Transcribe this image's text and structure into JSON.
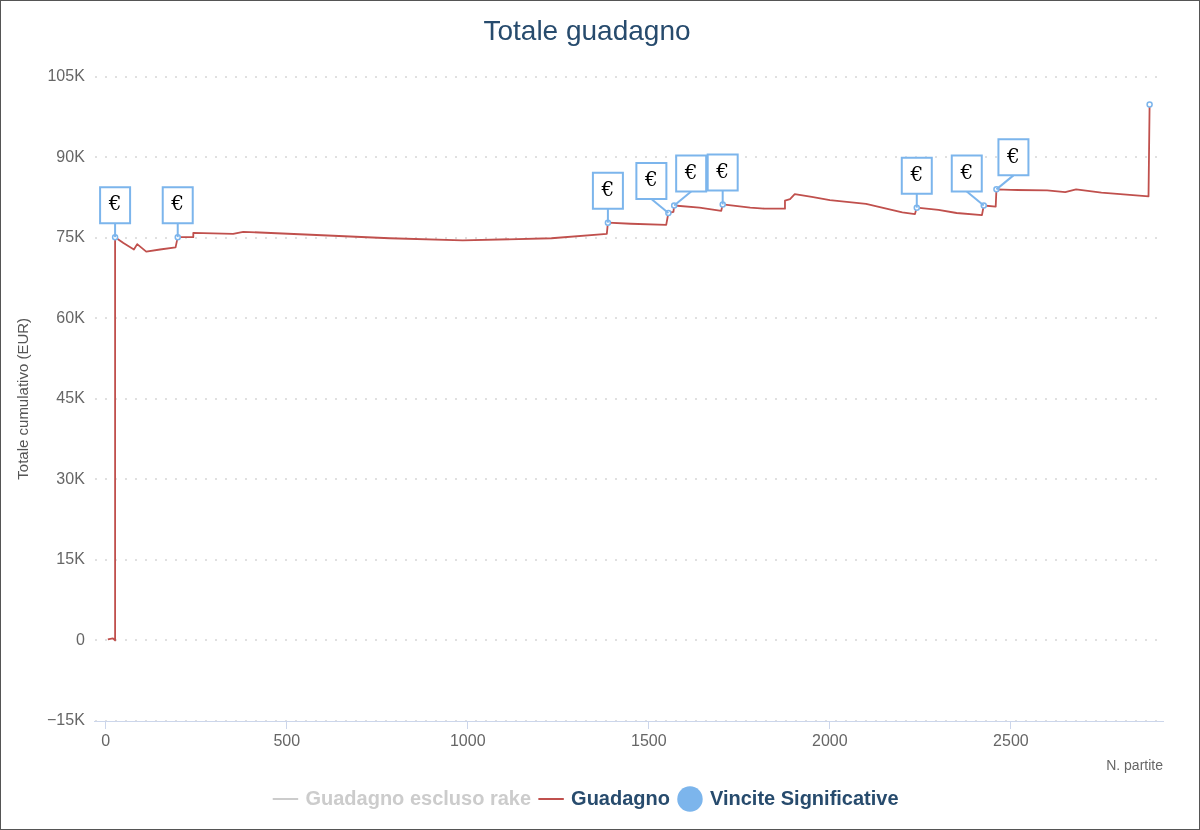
{
  "chart_data": {
    "type": "line",
    "title": "Totale guadagno",
    "xlabel": "N. partite",
    "ylabel": "Totale cumulativo (EUR)",
    "xlim": [
      -30,
      2920
    ],
    "xticks": [
      0,
      500,
      1000,
      1500,
      2000,
      2500
    ],
    "ylim": [
      -15000,
      105000
    ],
    "yticks": [
      {
        "value": -15000,
        "label": "−15K"
      },
      {
        "value": 0,
        "label": "0"
      },
      {
        "value": 15000,
        "label": "15K"
      },
      {
        "value": 30000,
        "label": "30K"
      },
      {
        "value": 45000,
        "label": "45K"
      },
      {
        "value": 60000,
        "label": "60K"
      },
      {
        "value": 75000,
        "label": "75K"
      },
      {
        "value": 90000,
        "label": "90K"
      },
      {
        "value": 105000,
        "label": "105K"
      }
    ],
    "grid": "y",
    "legend": "bottom",
    "line_style": "solid",
    "series": [
      {
        "name": "Guadagno escluso rake",
        "color": "#cccccc"
      },
      {
        "name": "Guadagno",
        "color": "#c0504d",
        "x": [
          6,
          20,
          26,
          26,
          49,
          78,
          87,
          112,
          150,
          193,
          199,
          242,
          242,
          352,
          380,
          582,
          784,
          986,
          1231,
          1384,
          1387,
          1450,
          1548,
          1554,
          1568,
          1570,
          1640,
          1700,
          1704,
          1780,
          1820,
          1874,
          1876,
          1890,
          1903,
          1950,
          2000,
          2100,
          2200,
          2235,
          2240,
          2300,
          2350,
          2420,
          2425,
          2458,
          2460,
          2500,
          2600,
          2650,
          2680,
          2750,
          2880,
          2883
        ],
        "values": [
          200,
          400,
          0,
          75100,
          74000,
          72800,
          73800,
          72400,
          72800,
          73200,
          75100,
          75100,
          75900,
          75700,
          76100,
          75500,
          74900,
          74500,
          74900,
          75700,
          77800,
          77600,
          77400,
          79600,
          79800,
          81000,
          80600,
          80000,
          81200,
          80600,
          80400,
          80400,
          81900,
          82200,
          83100,
          82600,
          82000,
          81300,
          79700,
          79400,
          80600,
          80200,
          79600,
          79200,
          81000,
          80800,
          84000,
          83900,
          83800,
          83500,
          84000,
          83400,
          82700,
          99800
        ]
      },
      {
        "name": "Vincite Significative",
        "color": "#7cb5ec",
        "type": "scatter",
        "marker": "circle",
        "x": [
          26,
          199,
          1387,
          1554,
          1570,
          1704,
          2240,
          2425,
          2460,
          2883
        ],
        "values": [
          75100,
          75100,
          77800,
          79600,
          81000,
          81200,
          80600,
          81000,
          84000,
          99800
        ]
      }
    ],
    "annotations": [
      {
        "text": "€",
        "x": 26,
        "y": 75100
      },
      {
        "text": "€",
        "x": 199,
        "y": 75100
      },
      {
        "text": "€",
        "x": 1387,
        "y": 77800
      },
      {
        "text": "€",
        "x": 1554,
        "y": 79600
      },
      {
        "text": "€",
        "x": 1570,
        "y": 81000
      },
      {
        "text": "€",
        "x": 1704,
        "y": 81200
      },
      {
        "text": "€",
        "x": 2240,
        "y": 80600
      },
      {
        "text": "€",
        "x": 2425,
        "y": 81000
      },
      {
        "text": "€",
        "x": 2460,
        "y": 84000
      }
    ]
  }
}
